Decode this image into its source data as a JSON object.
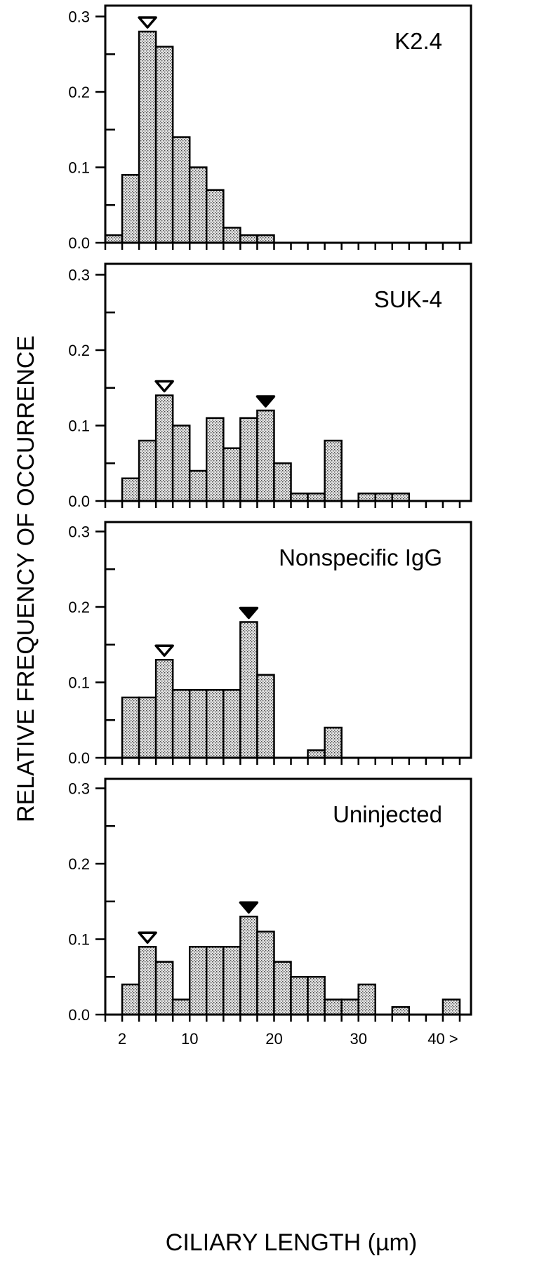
{
  "chart_data": {
    "type": "bar",
    "subtype": "histogram-small-multiples",
    "xlabel": "CILIARY LENGTH (µm)",
    "ylabel": "RELATIVE FREQUENCY OF OCCURRENCE",
    "xlim": [
      0,
      43
    ],
    "ylim": [
      0,
      0.3
    ],
    "bin_width": 2,
    "bin_starts": [
      0,
      2,
      4,
      6,
      8,
      10,
      12,
      14,
      16,
      18,
      20,
      22,
      24,
      26,
      28,
      30,
      32,
      34,
      36,
      38,
      40
    ],
    "x_tick_labels": [
      {
        "x": 2,
        "label": "2"
      },
      {
        "x": 10,
        "label": "10"
      },
      {
        "x": 20,
        "label": "20"
      },
      {
        "x": 30,
        "label": "30"
      },
      {
        "x": 40,
        "label": "40 >"
      }
    ],
    "y_tick_labels": [
      {
        "y": 0.0,
        "label": "0.0"
      },
      {
        "y": 0.1,
        "label": "0.1"
      },
      {
        "y": 0.2,
        "label": "0.2"
      },
      {
        "y": 0.3,
        "label": "0.3"
      }
    ],
    "grid": false,
    "legend": "none",
    "series": [
      {
        "name": "K2.4",
        "values": [
          0.01,
          0.09,
          0.28,
          0.26,
          0.14,
          0.1,
          0.07,
          0.02,
          0.01,
          0.01,
          0,
          0,
          0,
          0,
          0,
          0,
          0,
          0,
          0,
          0,
          0
        ],
        "open_marker_x": 5,
        "filled_marker_x": null
      },
      {
        "name": "SUK-4",
        "values": [
          0,
          0.03,
          0.08,
          0.14,
          0.1,
          0.04,
          0.11,
          0.07,
          0.11,
          0.12,
          0.05,
          0.01,
          0.01,
          0.08,
          0,
          0.01,
          0.01,
          0.01,
          0,
          0,
          0
        ],
        "open_marker_x": 7,
        "filled_marker_x": 19
      },
      {
        "name": "Nonspecific IgG",
        "values": [
          0,
          0.08,
          0.08,
          0.13,
          0.09,
          0.09,
          0.09,
          0.09,
          0.18,
          0.11,
          0,
          0,
          0.01,
          0.04,
          0,
          0,
          0,
          0,
          0,
          0,
          0
        ],
        "open_marker_x": 7,
        "filled_marker_x": 17
      },
      {
        "name": "Uninjected",
        "values": [
          0,
          0.04,
          0.09,
          0.07,
          0.02,
          0.09,
          0.09,
          0.09,
          0.13,
          0.11,
          0.07,
          0.05,
          0.05,
          0.02,
          0.02,
          0.04,
          0,
          0.01,
          0,
          0,
          0.02
        ],
        "open_marker_x": 5,
        "filled_marker_x": 17
      }
    ]
  }
}
